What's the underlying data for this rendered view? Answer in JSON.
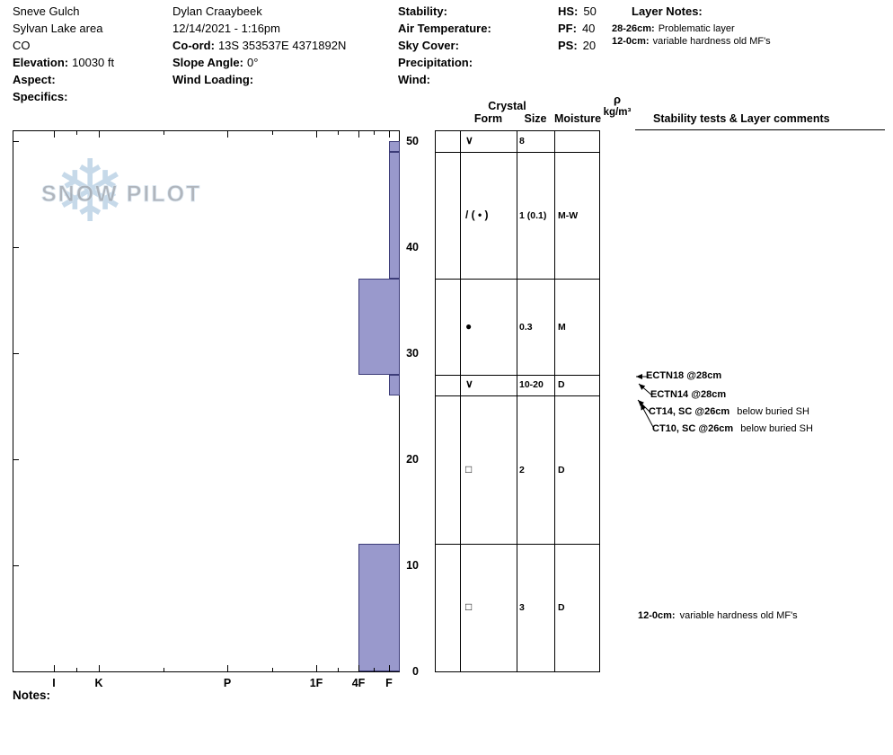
{
  "header": {
    "site": {
      "name": "Sneve Gulch",
      "area": "Sylvan Lake area",
      "state": "CO",
      "elevation_label": "Elevation:",
      "elevation_value": "10030 ft",
      "aspect_label": "Aspect:",
      "specifics_label": "Specifics:"
    },
    "observer": {
      "name": "Dylan Craaybeek",
      "datetime": "12/14/2021 - 1:16pm",
      "coord_label": "Co-ord:",
      "coord_value": "13S 353537E 4371892N",
      "slope_angle_label": "Slope Angle:",
      "slope_angle_value": "0°",
      "wind_loading_label": "Wind Loading:"
    },
    "conditions": {
      "stability_label": "Stability:",
      "air_temperature_label": "Air Temperature:",
      "sky_cover_label": "Sky Cover:",
      "precipitation_label": "Precipitation:",
      "wind_label": "Wind:"
    },
    "snow_depths": {
      "hs_label": "HS:",
      "hs_value": "50",
      "pf_label": "PF:",
      "pf_value": "40",
      "ps_label": "PS:",
      "ps_value": "20"
    },
    "layer_notes": {
      "title": "Layer Notes:",
      "notes": [
        {
          "range": "28-26cm:",
          "text": "Problematic layer"
        },
        {
          "range": "12-0cm:",
          "text": "variable hardness old MF's"
        }
      ]
    }
  },
  "logo": {
    "text": "SNOW PILOT",
    "snowflake": "❄"
  },
  "crystal_table": {
    "crystal": "Crystal",
    "form": "Form",
    "size": "Size",
    "moisture": "Moisture",
    "density_rho": "ρ",
    "density_unit": "kg/m³",
    "comments_header": "Stability tests & Layer comments"
  },
  "chart_data": {
    "type": "bar",
    "subtype": "snow-hardness-profile",
    "title": "",
    "depth_axis": {
      "unit": "cm",
      "min": 0,
      "max": 50,
      "ticks": [
        50,
        40,
        30,
        20,
        10,
        0
      ]
    },
    "hardness_axis": {
      "categories": [
        "I",
        "K",
        "P",
        "1F",
        "4F",
        "F"
      ]
    },
    "bar_color": "#9999cc",
    "bar_border_color": "#3c3c78",
    "layers": [
      {
        "top_cm": 50,
        "bottom_cm": 49,
        "hardness": "F",
        "form": "∨",
        "size": "8",
        "moisture": ""
      },
      {
        "top_cm": 49,
        "bottom_cm": 37,
        "hardness": "F",
        "form": "/ ( • )",
        "size": "1 (0.1)",
        "moisture": "M-W"
      },
      {
        "top_cm": 37,
        "bottom_cm": 28,
        "hardness": "4F",
        "form": "●",
        "size": "0.3",
        "moisture": "M"
      },
      {
        "top_cm": 28,
        "bottom_cm": 26,
        "hardness": "F",
        "form": "∨",
        "size": "10-20",
        "moisture": "D"
      },
      {
        "top_cm": 26,
        "bottom_cm": 12,
        "hardness": "",
        "form": "□",
        "size": "2",
        "moisture": "D"
      },
      {
        "top_cm": 12,
        "bottom_cm": 0,
        "hardness": "4F",
        "form": "□",
        "size": "3",
        "moisture": "D"
      }
    ],
    "stability_tests": [
      {
        "label": "ECTN18 @28cm",
        "note": ""
      },
      {
        "label": "ECTN14 @28cm",
        "note": ""
      },
      {
        "label": "CT14, SC @26cm",
        "note": "below buried SH"
      },
      {
        "label": "CT10, SC @26cm",
        "note": "below buried SH"
      }
    ],
    "layer_comment": {
      "range": "12-0cm:",
      "text": "variable hardness old MF's"
    }
  },
  "footer": {
    "notes_label": "Notes:"
  }
}
